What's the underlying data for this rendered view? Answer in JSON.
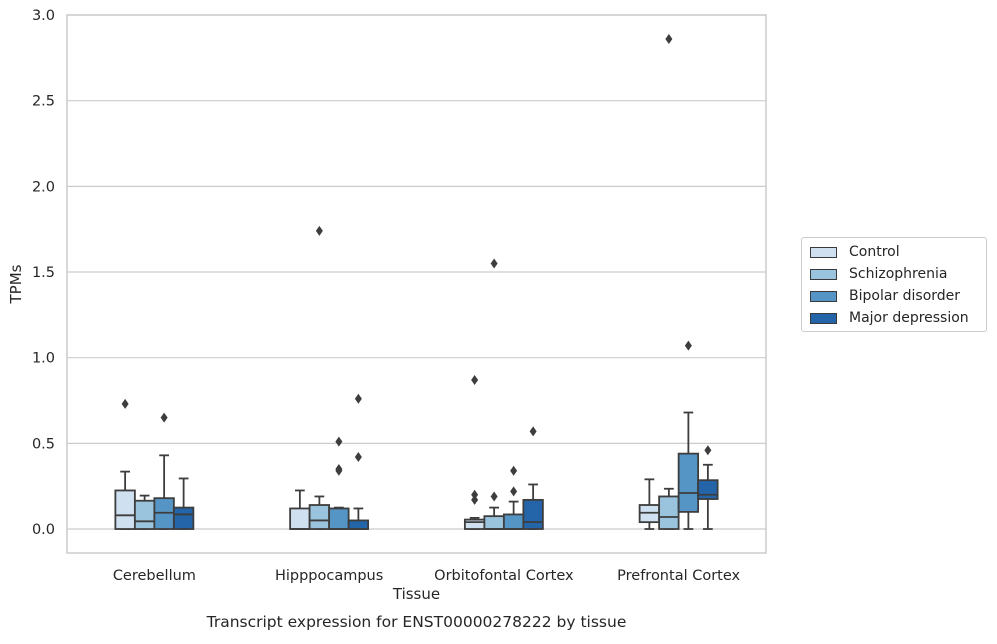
{
  "chart_data": {
    "type": "box",
    "title": "Transcript expression for ENST00000278222 by tissue",
    "xlabel": "Tissue",
    "ylabel": "TPMs",
    "ylim": [
      -0.14,
      3.0
    ],
    "yticks": [
      "0.0",
      "0.5",
      "1.0",
      "1.5",
      "2.0",
      "2.5",
      "3.0"
    ],
    "grid": "horizontal",
    "legend_position": "right",
    "categories": [
      "Cerebellum",
      "Hipppocampus",
      "Orbitofontal Cortex",
      "Prefrontal Cortex"
    ],
    "series": [
      {
        "name": "Control",
        "color": "#cfe0f0",
        "boxes": [
          {
            "q1": 0.0,
            "median": 0.08,
            "q3": 0.225,
            "whisker_low": 0.0,
            "whisker_high": 0.335,
            "outliers": [
              0.73
            ]
          },
          {
            "q1": 0.0,
            "median": 0.0,
            "q3": 0.12,
            "whisker_low": 0.0,
            "whisker_high": 0.225,
            "outliers": []
          },
          {
            "q1": 0.0,
            "median": 0.04,
            "q3": 0.055,
            "whisker_low": 0.0,
            "whisker_high": 0.065,
            "outliers": [
              0.87,
              0.2,
              0.17
            ]
          },
          {
            "q1": 0.04,
            "median": 0.095,
            "q3": 0.14,
            "whisker_low": 0.0,
            "whisker_high": 0.29,
            "outliers": []
          }
        ]
      },
      {
        "name": "Schizophrenia",
        "color": "#9ac4de",
        "boxes": [
          {
            "q1": 0.0,
            "median": 0.045,
            "q3": 0.165,
            "whisker_low": 0.0,
            "whisker_high": 0.195,
            "outliers": []
          },
          {
            "q1": 0.0,
            "median": 0.05,
            "q3": 0.14,
            "whisker_low": 0.0,
            "whisker_high": 0.19,
            "outliers": [
              1.74
            ]
          },
          {
            "q1": 0.0,
            "median": 0.0,
            "q3": 0.075,
            "whisker_low": 0.0,
            "whisker_high": 0.125,
            "outliers": [
              1.55,
              0.19
            ]
          },
          {
            "q1": 0.0,
            "median": 0.07,
            "q3": 0.19,
            "whisker_low": 0.0,
            "whisker_high": 0.235,
            "outliers": [
              2.86
            ]
          }
        ]
      },
      {
        "name": "Bipolar disorder",
        "color": "#5595c6",
        "boxes": [
          {
            "q1": 0.0,
            "median": 0.095,
            "q3": 0.18,
            "whisker_low": 0.0,
            "whisker_high": 0.43,
            "outliers": [
              0.65
            ]
          },
          {
            "q1": 0.0,
            "median": 0.0,
            "q3": 0.12,
            "whisker_low": 0.0,
            "whisker_high": 0.125,
            "outliers": [
              0.51,
              0.35,
              0.34
            ]
          },
          {
            "q1": 0.0,
            "median": 0.0,
            "q3": 0.085,
            "whisker_low": 0.0,
            "whisker_high": 0.16,
            "outliers": [
              0.34,
              0.22
            ]
          },
          {
            "q1": 0.1,
            "median": 0.21,
            "q3": 0.44,
            "whisker_low": 0.0,
            "whisker_high": 0.68,
            "outliers": [
              1.07
            ]
          }
        ]
      },
      {
        "name": "Major depression",
        "color": "#2464a8",
        "boxes": [
          {
            "q1": 0.0,
            "median": 0.085,
            "q3": 0.125,
            "whisker_low": 0.0,
            "whisker_high": 0.295,
            "outliers": []
          },
          {
            "q1": 0.0,
            "median": 0.0,
            "q3": 0.05,
            "whisker_low": 0.0,
            "whisker_high": 0.12,
            "outliers": [
              0.76,
              0.42
            ]
          },
          {
            "q1": 0.0,
            "median": 0.04,
            "q3": 0.17,
            "whisker_low": 0.0,
            "whisker_high": 0.26,
            "outliers": [
              0.57
            ]
          },
          {
            "q1": 0.175,
            "median": 0.2,
            "q3": 0.285,
            "whisker_low": 0.0,
            "whisker_high": 0.375,
            "outliers": [
              0.46
            ]
          }
        ]
      }
    ]
  }
}
